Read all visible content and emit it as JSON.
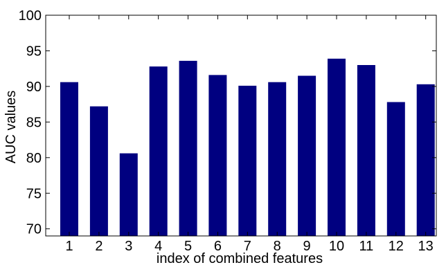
{
  "chart_data": {
    "type": "bar",
    "categories": [
      "1",
      "2",
      "3",
      "4",
      "5",
      "6",
      "7",
      "8",
      "9",
      "10",
      "11",
      "12",
      "13"
    ],
    "values": [
      90.6,
      87.2,
      80.6,
      92.8,
      93.6,
      91.6,
      90.1,
      90.6,
      91.5,
      93.9,
      93.0,
      87.8,
      90.3
    ],
    "xlabel": "index of combined features",
    "ylabel": "AUC values",
    "ylim": [
      69,
      100
    ],
    "yticks": [
      70,
      75,
      80,
      85,
      90,
      95,
      100
    ],
    "grid": false,
    "bar_color": "#000080"
  }
}
